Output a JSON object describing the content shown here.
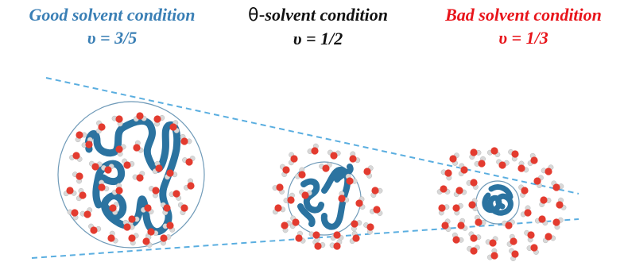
{
  "conditions": [
    {
      "id": "good",
      "title": "Good solvent condition",
      "nu": "υ = 3/5",
      "color": "#3a7fb5"
    },
    {
      "id": "theta",
      "title_symbol": "θ-",
      "title": "solvent condition",
      "nu": "υ = 1/2",
      "color": "#111111"
    },
    {
      "id": "bad",
      "title": "Bad solvent condition",
      "nu": "υ = 1/3",
      "color": "#e8141a"
    }
  ],
  "colors": {
    "cone_line": "#5aaee0",
    "coil_circle": "#6f9ab8",
    "polymer_chain": "#2b73a0",
    "water_oxygen": "#e33b2f",
    "water_hydrogen": "#d8d8d8"
  },
  "icons": [
    "water-molecule-icon",
    "polymer-coil-icon"
  ]
}
